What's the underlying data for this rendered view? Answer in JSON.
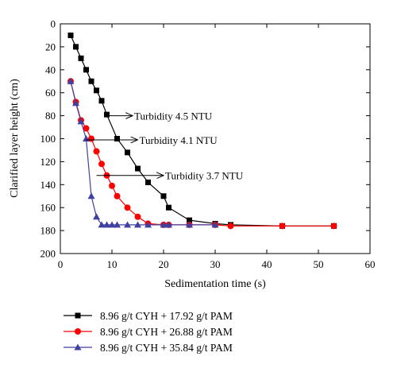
{
  "chart_data": {
    "type": "line",
    "xlabel": "Sedimentation time (s)",
    "ylabel": "Clarified layer height (cm)",
    "xlim": [
      0,
      60
    ],
    "ylim": [
      0,
      200
    ],
    "y_inverted": true,
    "x_ticks": [
      0,
      10,
      20,
      30,
      40,
      50,
      60
    ],
    "y_ticks": [
      0,
      20,
      40,
      60,
      80,
      100,
      120,
      140,
      160,
      180,
      200
    ],
    "grid": false,
    "legend_position": "below",
    "series": [
      {
        "name": "8.96 g/t CYH + 17.92 g/t PAM",
        "color": "#000000",
        "marker": "square",
        "x": [
          2,
          3,
          4,
          5,
          6,
          7,
          8,
          9,
          11,
          13,
          15,
          17,
          20,
          21,
          25,
          30,
          33,
          43,
          53
        ],
        "y": [
          10,
          20,
          30,
          40,
          50,
          58,
          67,
          79,
          100,
          112,
          126,
          138,
          150,
          160,
          171,
          174,
          175,
          176,
          176
        ]
      },
      {
        "name": "8.96 g/t CYH + 26.88 g/t PAM",
        "color": "#ff0000",
        "marker": "circle",
        "x": [
          2,
          3,
          4,
          5,
          6,
          7,
          8,
          9,
          10,
          11,
          13,
          15,
          17,
          20,
          21,
          25,
          30,
          33,
          43,
          53
        ],
        "y": [
          50,
          68,
          84,
          91,
          100,
          111,
          122,
          132,
          141,
          150,
          160,
          168,
          174,
          175,
          175,
          175,
          175,
          176,
          176,
          176
        ]
      },
      {
        "name": "8.96 g/t CYH + 35.84 g/t PAM",
        "color": "#4040a0",
        "marker": "triangle",
        "x": [
          2,
          3,
          4,
          5,
          6,
          7,
          8,
          9,
          10,
          11,
          13,
          15,
          17,
          20,
          21,
          25,
          30
        ],
        "y": [
          50,
          69,
          85,
          100,
          150,
          168,
          175,
          175,
          175,
          175,
          175,
          175,
          175,
          175,
          175,
          175,
          175
        ]
      }
    ],
    "annotations": [
      {
        "text": "Turbidity 4.5 NTU",
        "arrow_from": [
          9,
          80
        ],
        "arrow_to": [
          14,
          80
        ]
      },
      {
        "text": "Turbidity 4.1 NTU",
        "arrow_from": [
          5,
          101
        ],
        "arrow_to": [
          15,
          101
        ]
      },
      {
        "text": "Turbidity 3.7 NTU",
        "arrow_from": [
          7,
          132
        ],
        "arrow_to": [
          20,
          132
        ]
      }
    ]
  }
}
